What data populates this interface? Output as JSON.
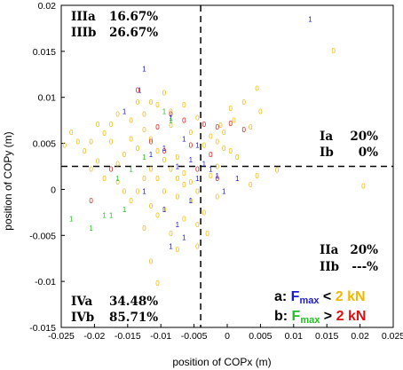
{
  "chart_data": {
    "type": "scatter",
    "xlabel": "position of COPx (m)",
    "ylabel": "position of COPy (m)",
    "xlim": [
      -0.025,
      0.025
    ],
    "ylim": [
      -0.015,
      0.02
    ],
    "xticks": [
      "-0.025",
      "-0.02",
      "-0.015",
      "-0.01",
      "-0.005",
      "0",
      "0.005",
      "0.01",
      "0.015",
      "0.02",
      "0.025"
    ],
    "yticks": [
      "-0.015",
      "-0.01",
      "-0.005",
      "0",
      "0.005",
      "0.01",
      "0.015",
      "0.02"
    ],
    "reference_lines": {
      "x": -0.004,
      "y": 0.0025
    },
    "quadrant_labels": [
      {
        "line1_label": "IIIa",
        "line1_value": "16.67%",
        "line2_label": "IIIb",
        "line2_value": "26.67%"
      },
      {
        "line1_label": "Ia",
        "line1_value": "20%",
        "line2_label": "Ib",
        "line2_value": "0%"
      },
      {
        "line1_label": "IIa",
        "line1_value": "20%",
        "line2_label": "IIb",
        "line2_value": "---%"
      },
      {
        "line1_label": "IVa",
        "line1_value": "34.48%",
        "line2_label": "IVb",
        "line2_value": "85.71%"
      }
    ],
    "legend": {
      "line_a": {
        "prefix": "a: ",
        "f": "F",
        "sub": "max",
        "op": " < ",
        "value": "2 kN",
        "f_color": "#1a1ad6",
        "value_color": "#f0b800"
      },
      "line_b": {
        "prefix": "b: ",
        "f": "F",
        "sub": "max",
        "op": " > ",
        "value": "2 kN",
        "f_color": "#22c022",
        "value_color": "#e01010"
      }
    },
    "series": [
      {
        "marker": "0",
        "color": "#f0b800",
        "points": [
          [
            0.016,
            0.0151
          ],
          [
            0.0205,
            0.0004
          ],
          [
            0.0075,
            0.0021
          ],
          [
            0.0045,
            0.011
          ],
          [
            0.0025,
            0.0095
          ],
          [
            0.0005,
            0.0088
          ],
          [
            0.005,
            0.0085
          ],
          [
            0.001,
            0.0075
          ],
          [
            -0.001,
            0.007
          ],
          [
            0.0035,
            0.0068
          ],
          [
            -0.0005,
            0.0062
          ],
          [
            -0.0025,
            0.0058
          ],
          [
            -0.0035,
            0.0048
          ],
          [
            -0.0005,
            0.0045
          ],
          [
            0.0015,
            0.0035
          ],
          [
            0.0045,
            0.0015
          ],
          [
            0.0035,
            0.0005
          ],
          [
            -0.0015,
            -0.0008
          ],
          [
            -0.0035,
            -0.0025
          ],
          [
            -0.003,
            -0.0048
          ],
          [
            -0.0045,
            -0.0062
          ],
          [
            -0.0045,
            -0.0038
          ],
          [
            -0.0065,
            0.0005
          ],
          [
            -0.0075,
            0.0035
          ],
          [
            -0.0085,
            0.007
          ],
          [
            -0.0065,
            0.0092
          ],
          [
            -0.0095,
            0.0105
          ],
          [
            -0.0115,
            0.0095
          ],
          [
            -0.0135,
            0.0095
          ],
          [
            -0.0125,
            0.0082
          ],
          [
            -0.0145,
            0.0075
          ],
          [
            -0.0165,
            0.0082
          ],
          [
            -0.0175,
            0.0071
          ],
          [
            -0.0185,
            0.0061
          ],
          [
            -0.0195,
            0.0071
          ],
          [
            -0.0205,
            0.0052
          ],
          [
            -0.0225,
            0.0052
          ],
          [
            -0.0245,
            0.0048
          ],
          [
            -0.0235,
            0.0062
          ],
          [
            -0.0215,
            0.0042
          ],
          [
            -0.0195,
            0.0031
          ],
          [
            -0.0205,
            0.0022
          ],
          [
            -0.0185,
            0.0012
          ],
          [
            -0.0165,
            0.0028
          ],
          [
            -0.0155,
            0.0038
          ],
          [
            -0.0135,
            0.0045
          ],
          [
            -0.0115,
            0.0055
          ],
          [
            -0.0105,
            0.0042
          ],
          [
            -0.0095,
            0.0032
          ],
          [
            -0.0085,
            0.0022
          ],
          [
            -0.0075,
            0.0012
          ],
          [
            -0.0065,
            0.0018
          ],
          [
            -0.0055,
            0.0008
          ],
          [
            -0.0045,
            -0.0002
          ],
          [
            -0.0055,
            -0.0012
          ],
          [
            -0.0075,
            -0.0008
          ],
          [
            -0.0095,
            -0.0002
          ],
          [
            -0.0105,
            0.0012
          ],
          [
            -0.0115,
            0.0022
          ],
          [
            -0.0125,
            0.0012
          ],
          [
            -0.0135,
            -0.0002
          ],
          [
            -0.0145,
            -0.0012
          ],
          [
            -0.0155,
            -0.0002
          ],
          [
            -0.0165,
            0.0008
          ],
          [
            -0.0115,
            -0.0018
          ],
          [
            -0.0105,
            -0.0028
          ],
          [
            -0.0125,
            -0.0042
          ],
          [
            -0.0095,
            -0.0022
          ],
          [
            -0.0085,
            -0.0048
          ],
          [
            -0.0065,
            -0.0032
          ],
          [
            -0.0075,
            -0.0065
          ],
          [
            -0.0115,
            -0.0078
          ],
          [
            -0.0105,
            -0.0102
          ],
          [
            -0.0045,
            0.0078
          ],
          [
            -0.0055,
            0.0062
          ],
          [
            -0.0175,
            0.0052
          ],
          [
            -0.0145,
            0.0055
          ],
          [
            -0.0125,
            0.0065
          ],
          [
            -0.0085,
            0.0085
          ],
          [
            -0.0105,
            0.0092
          ],
          [
            -0.0015,
            0.0025
          ],
          [
            -0.0025,
            0.0015
          ],
          [
            -0.0015,
            0.0052
          ],
          [
            0.0005,
            0.0042
          ]
        ]
      },
      {
        "marker": "0",
        "color": "#e01010",
        "points": [
          [
            -0.0135,
            0.0108
          ],
          [
            -0.0115,
            0.0052
          ],
          [
            -0.0105,
            0.0068
          ],
          [
            -0.0085,
            0.0082
          ],
          [
            -0.0065,
            0.0075
          ],
          [
            -0.0035,
            0.0071
          ],
          [
            -0.0015,
            0.0068
          ],
          [
            0.0005,
            0.0072
          ],
          [
            0.0025,
            0.0065
          ],
          [
            -0.0055,
            0.0048
          ],
          [
            -0.0205,
            -0.0012
          ],
          [
            -0.0175,
            0.0022
          ],
          [
            -0.0095,
            0.0042
          ],
          [
            -0.0025,
            0.0038
          ],
          [
            -0.0015,
            0.0012
          ],
          [
            -0.0045,
            0.0022
          ]
        ]
      },
      {
        "marker": "1",
        "color": "#1a1ad6",
        "points": [
          [
            0.0125,
            0.0185
          ],
          [
            -0.0125,
            0.0131
          ],
          [
            -0.0132,
            0.0108
          ],
          [
            -0.0155,
            0.0085
          ],
          [
            -0.0085,
            0.0078
          ],
          [
            -0.0065,
            0.0055
          ],
          [
            -0.0045,
            0.0048
          ],
          [
            -0.0095,
            0.0045
          ],
          [
            -0.0115,
            0.0038
          ],
          [
            -0.0055,
            0.0032
          ],
          [
            -0.0035,
            0.0028
          ],
          [
            -0.0075,
            0.0025
          ],
          [
            -0.0045,
            0.0012
          ],
          [
            -0.0025,
            0.0022
          ],
          [
            -0.0015,
            0.0015
          ],
          [
            -0.0005,
            -0.0002
          ],
          [
            -0.0055,
            -0.0012
          ],
          [
            -0.0095,
            -0.0022
          ],
          [
            -0.0075,
            -0.0038
          ],
          [
            -0.0065,
            -0.0052
          ],
          [
            -0.0085,
            -0.0062
          ],
          [
            0.0015,
            0.0012
          ],
          [
            -0.0125,
            -0.0002
          ]
        ]
      },
      {
        "marker": "1",
        "color": "#22c022",
        "points": [
          [
            -0.0235,
            -0.0032
          ],
          [
            -0.0205,
            -0.0042
          ],
          [
            -0.0185,
            -0.0028
          ],
          [
            -0.0175,
            -0.0028
          ],
          [
            -0.0155,
            -0.0022
          ],
          [
            -0.0165,
            0.0012
          ],
          [
            -0.0145,
            0.0022
          ],
          [
            -0.0125,
            0.0035
          ],
          [
            -0.0095,
            0.0085
          ],
          [
            -0.0085,
            0.0075
          ]
        ]
      }
    ]
  }
}
